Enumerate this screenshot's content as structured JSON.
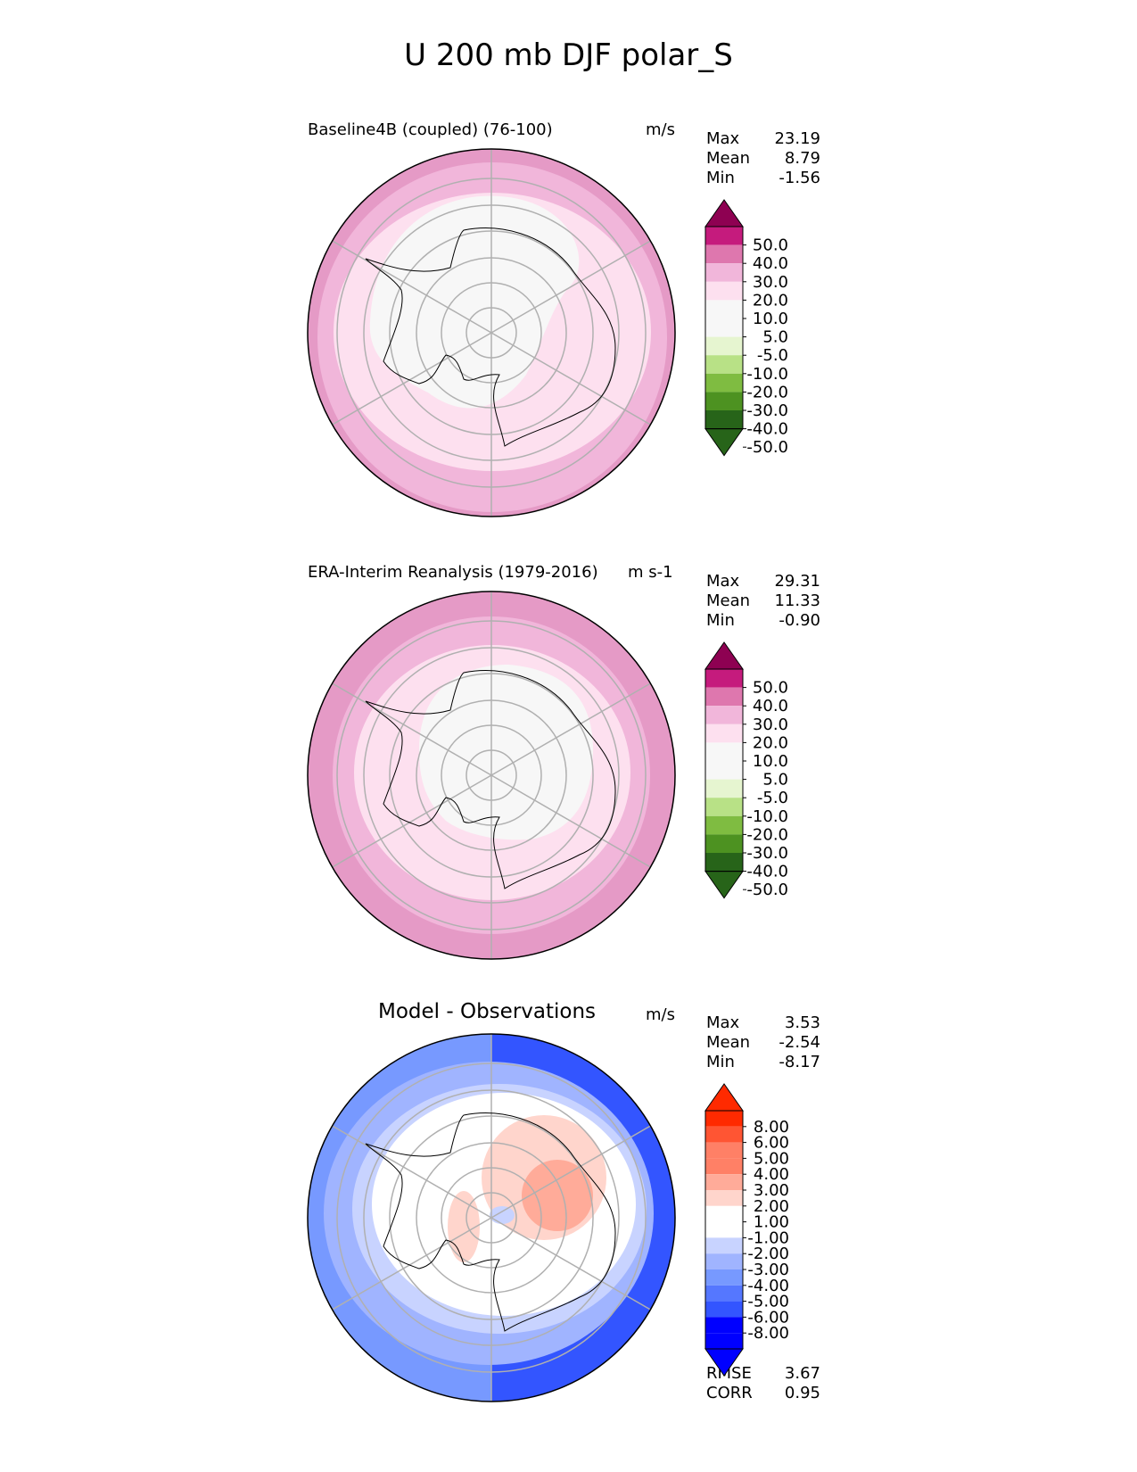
{
  "title": "U 200 mb DJF polar_S",
  "colors": {
    "pink_scale": [
      "#276419",
      "#4d9221",
      "#7fbc41",
      "#b8e186",
      "#e6f5d0",
      "#f7f7f7",
      "#fde0ef",
      "#f1b6da",
      "#de77ae",
      "#c51b7d",
      "#8e0152"
    ],
    "diff_scale": [
      "#0000ff",
      "#3355ff",
      "#5577ff",
      "#7799ff",
      "#a0b4ff",
      "#c8d3ff",
      "#ffffff",
      "#ffd5cc",
      "#ffab99",
      "#ff8066",
      "#ff5533",
      "#ff2a00"
    ]
  },
  "chart_data": [
    {
      "type": "map-contour",
      "title": "Baseline4B (coupled) (76-100)",
      "units": "m/s",
      "stats": [
        {
          "label": "Max",
          "value": "23.19"
        },
        {
          "label": "Mean",
          "value": "8.79"
        },
        {
          "label": "Min",
          "value": "-1.56"
        }
      ],
      "colorbar_labels": [
        "50.0",
        "40.0",
        "30.0",
        "20.0",
        "10.0",
        "5.0",
        "-5.0",
        "-10.0",
        "-20.0",
        "-30.0",
        "-40.0",
        "-50.0"
      ]
    },
    {
      "type": "map-contour",
      "title": "ERA-Interim Reanalysis (1979-2016)",
      "units": "m s-1",
      "stats": [
        {
          "label": "Max",
          "value": "29.31"
        },
        {
          "label": "Mean",
          "value": "11.33"
        },
        {
          "label": "Min",
          "value": "-0.90"
        }
      ],
      "colorbar_labels": [
        "50.0",
        "40.0",
        "30.0",
        "20.0",
        "10.0",
        "5.0",
        "-5.0",
        "-10.0",
        "-20.0",
        "-30.0",
        "-40.0",
        "-50.0"
      ]
    },
    {
      "type": "map-contour",
      "title": "Model - Observations",
      "units": "m/s",
      "stats": [
        {
          "label": "Max",
          "value": "3.53"
        },
        {
          "label": "Mean",
          "value": "-2.54"
        },
        {
          "label": "Min",
          "value": "-8.17"
        }
      ],
      "colorbar_labels": [
        "8.00",
        "6.00",
        "5.00",
        "4.00",
        "3.00",
        "2.00",
        "1.00",
        "-1.00",
        "-2.00",
        "-3.00",
        "-4.00",
        "-5.00",
        "-6.00",
        "-8.00"
      ],
      "metrics": [
        {
          "label": "RMSE",
          "value": "3.67"
        },
        {
          "label": "CORR",
          "value": "0.95"
        }
      ]
    }
  ]
}
